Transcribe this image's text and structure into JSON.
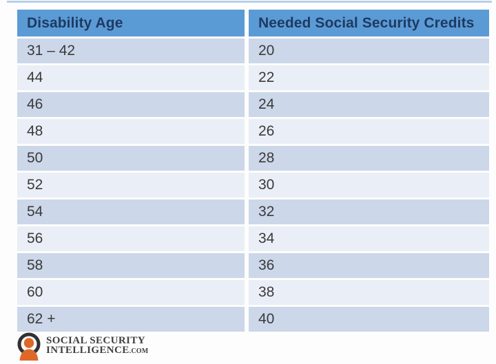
{
  "chart_data": {
    "type": "table",
    "title": "",
    "columns": [
      "Disability Age",
      "Needed Social Security Credits"
    ],
    "rows": [
      {
        "age": "31 – 42",
        "credits": "20"
      },
      {
        "age": "44",
        "credits": "22"
      },
      {
        "age": "46",
        "credits": "24"
      },
      {
        "age": "48",
        "credits": "26"
      },
      {
        "age": "50",
        "credits": "28"
      },
      {
        "age": "52",
        "credits": "30"
      },
      {
        "age": "54",
        "credits": "32"
      },
      {
        "age": "56",
        "credits": "34"
      },
      {
        "age": "58",
        "credits": "36"
      },
      {
        "age": "60",
        "credits": "38"
      },
      {
        "age": "62 +",
        "credits": "40"
      }
    ],
    "layout": {
      "banding": "alternating rows, first data row dark",
      "grid": "white separators"
    }
  },
  "colors": {
    "header_bg": "#5b9bd5",
    "header_text": "#1e3a63",
    "row_dark": "#ccd7e9",
    "row_light": "#eaeef6",
    "row_text": "#3a3a3a",
    "top_line": "#b7cfe9",
    "logo_orange": "#df6728",
    "logo_ring": "#313131",
    "logo_text": "#404040"
  },
  "logo": {
    "line1": "SOCIAL SECURITY",
    "line2": "INTELLIGENCE",
    "line2_suffix": ".COM",
    "icon": "person-in-ring-icon"
  }
}
